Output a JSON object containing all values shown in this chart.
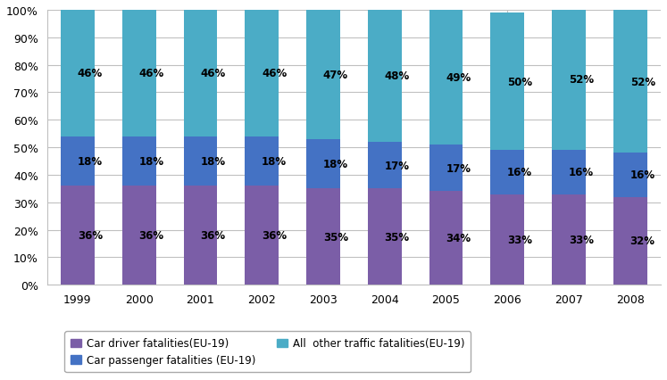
{
  "years": [
    "1999",
    "2000",
    "2001",
    "2002",
    "2003",
    "2004",
    "2005",
    "2006",
    "2007",
    "2008"
  ],
  "car_driver": [
    36,
    36,
    36,
    36,
    35,
    35,
    34,
    33,
    33,
    32
  ],
  "car_passenger": [
    18,
    18,
    18,
    18,
    18,
    17,
    17,
    16,
    16,
    16
  ],
  "all_other": [
    46,
    46,
    46,
    46,
    47,
    48,
    49,
    50,
    52,
    52
  ],
  "color_driver": "#7B5EA7",
  "color_passenger": "#4472C4",
  "color_other": "#4BACC6",
  "legend_driver": "Car driver fatalities(EU-19)",
  "legend_passenger": "Car passenger fatalities (EU-19)",
  "legend_other": "All  other traffic fatalities(EU-19)",
  "ylim": [
    0,
    100
  ],
  "yticks": [
    0,
    10,
    20,
    30,
    40,
    50,
    60,
    70,
    80,
    90,
    100
  ],
  "ytick_labels": [
    "0%",
    "10%",
    "20%",
    "30%",
    "40%",
    "50%",
    "60%",
    "70%",
    "80%",
    "90%",
    "100%"
  ],
  "background_color": "#FFFFFF",
  "grid_color": "#C0C0C0",
  "label_fontsize": 8.5,
  "tick_fontsize": 9,
  "legend_fontsize": 8.5,
  "bar_width": 0.55
}
